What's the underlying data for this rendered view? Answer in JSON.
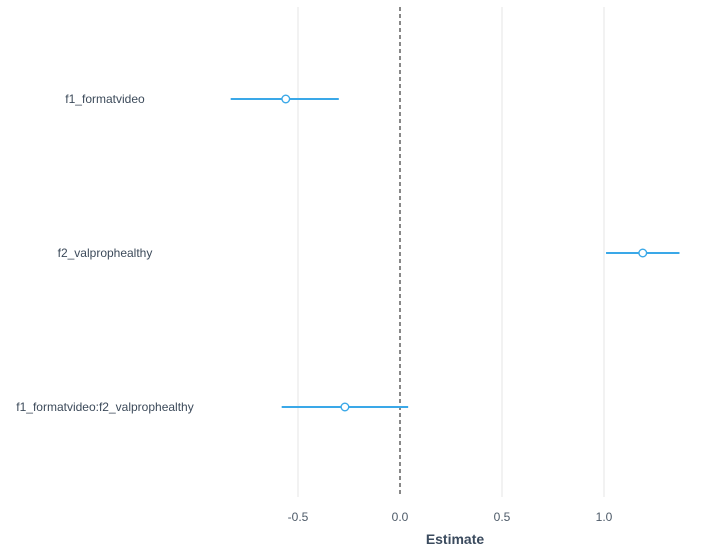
{
  "chart_data": {
    "type": "forest",
    "xlabel": "Estimate",
    "xlim": [
      -1.0,
      1.45
    ],
    "x_ticks": [
      -0.5,
      0.0,
      0.5,
      1.0
    ],
    "x_tick_labels": [
      "-0.5",
      "0.0",
      "0.5",
      "1.0"
    ],
    "reference_line": 0,
    "grid": "vertical",
    "series_color": "#3aa8e8",
    "terms": [
      {
        "label": "f1_formatvideo",
        "estimate": -0.56,
        "ci_low": -0.83,
        "ci_high": -0.3
      },
      {
        "label": "f2_valprophealthy",
        "estimate": 1.19,
        "ci_low": 1.01,
        "ci_high": 1.37
      },
      {
        "label": "f1_formatvideo:f2_valprophealthy",
        "estimate": -0.27,
        "ci_low": -0.58,
        "ci_high": 0.04
      }
    ]
  }
}
